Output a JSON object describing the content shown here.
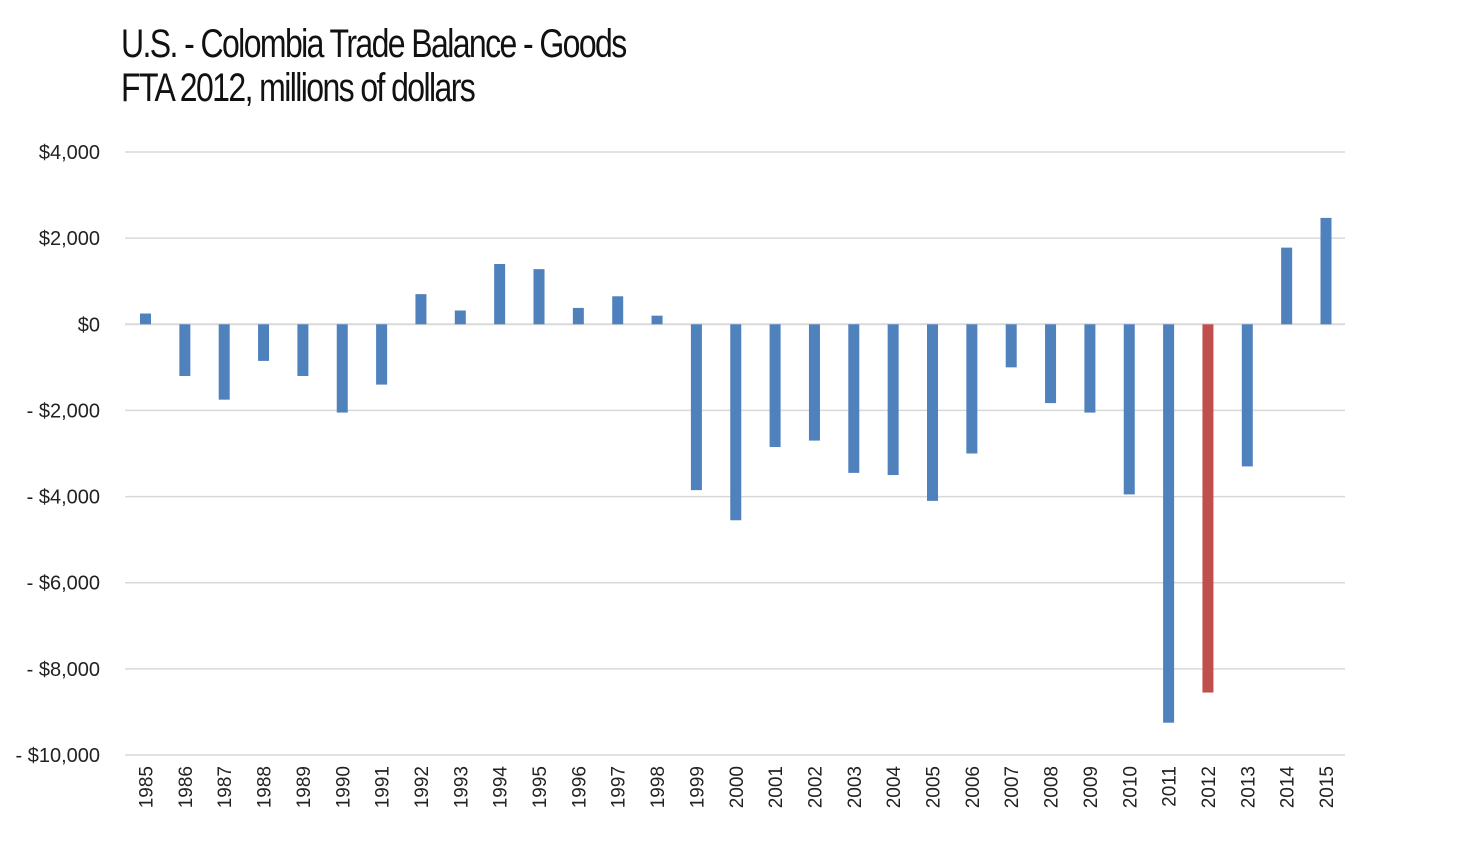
{
  "chart_data": {
    "type": "bar",
    "title": "U.S. - Colombia Trade Balance - Goods",
    "subtitle": "FTA 2012, millions of dollars",
    "xlabel": "",
    "ylabel": "",
    "ylim": [
      -10000,
      4000
    ],
    "yticks": [
      4000,
      2000,
      0,
      -2000,
      -4000,
      -6000,
      -8000,
      -10000
    ],
    "ytick_labels": [
      "$4,000",
      "$2,000",
      "$0",
      "- $2,000",
      "- $4,000",
      "- $6,000",
      "- $8,000",
      "- $10,000"
    ],
    "grid": true,
    "legend": "none",
    "categories": [
      "1985",
      "1986",
      "1987",
      "1988",
      "1989",
      "1990",
      "1991",
      "1992",
      "1993",
      "1994",
      "1995",
      "1996",
      "1997",
      "1998",
      "1999",
      "2000",
      "2001",
      "2002",
      "2003",
      "2004",
      "2005",
      "2006",
      "2007",
      "2008",
      "2009",
      "2010",
      "2011",
      "2012",
      "2013",
      "2014",
      "2015"
    ],
    "values": [
      250,
      -1200,
      -1750,
      -850,
      -1200,
      -2050,
      -1400,
      700,
      320,
      1400,
      1280,
      380,
      650,
      200,
      -3850,
      -4550,
      -2850,
      -2700,
      -3450,
      -3500,
      -4100,
      -3000,
      -1000,
      -1830,
      -2050,
      -3950,
      -9250,
      -8550,
      -3300,
      1780,
      2470
    ],
    "colors": {
      "bar": "#4f81bd",
      "highlight": "#c0504d",
      "grid": "#d9d9d9"
    },
    "highlight_category": "2012"
  }
}
